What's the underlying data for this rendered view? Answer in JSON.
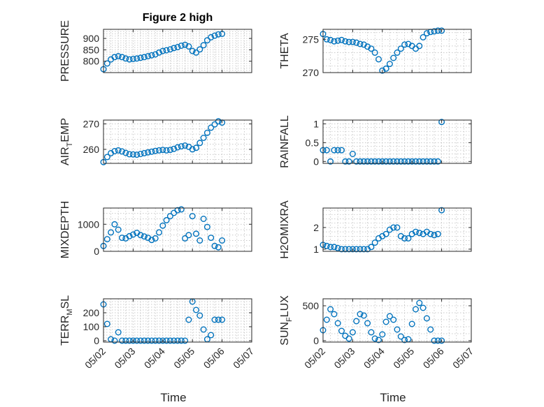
{
  "figure": {
    "title": "Figure 2 high",
    "xlabel": "Time",
    "x_tick_labels": [
      "05/02",
      "05/03",
      "05/04",
      "05/05",
      "05/06",
      "05/07"
    ],
    "marker_color": "#0072BD"
  },
  "chart_data": [
    {
      "type": "scatter",
      "title": "Figure 2 high",
      "ylabel": "PRESSURE",
      "xlabel": "",
      "ylim": [
        750,
        940
      ],
      "yticks": [
        800,
        850,
        900
      ],
      "ytick_labels": [
        "800",
        "850",
        "900"
      ],
      "xlim": [
        "05/02",
        "05/07"
      ],
      "grid": true,
      "x": [
        "05/02 00:00",
        "05/02 03:00",
        "05/02 06:00",
        "05/02 09:00",
        "05/02 12:00",
        "05/02 15:00",
        "05/02 18:00",
        "05/02 21:00",
        "05/03 00:00",
        "05/03 03:00",
        "05/03 06:00",
        "05/03 09:00",
        "05/03 12:00",
        "05/03 15:00",
        "05/03 18:00",
        "05/03 21:00",
        "05/04 00:00",
        "05/04 03:00",
        "05/04 06:00",
        "05/04 09:00",
        "05/04 12:00",
        "05/04 15:00",
        "05/04 18:00",
        "05/04 21:00",
        "05/05 00:00",
        "05/05 03:00",
        "05/05 06:00",
        "05/05 09:00",
        "05/05 12:00",
        "05/05 15:00",
        "05/05 18:00",
        "05/05 21:00",
        "05/06 00:00"
      ],
      "y": [
        765,
        790,
        808,
        818,
        822,
        818,
        812,
        808,
        810,
        812,
        815,
        818,
        822,
        826,
        830,
        838,
        845,
        848,
        852,
        858,
        862,
        868,
        872,
        865,
        845,
        838,
        852,
        870,
        892,
        905,
        912,
        918,
        920
      ]
    },
    {
      "type": "scatter",
      "ylabel": "THETA",
      "xlabel": "",
      "ylim": [
        270,
        276.5
      ],
      "yticks": [
        270,
        275
      ],
      "ytick_labels": [
        "270",
        "275"
      ],
      "xlim": [
        "05/02",
        "05/07"
      ],
      "grid": true,
      "x": [
        "05/02 00:00",
        "05/02 03:00",
        "05/02 06:00",
        "05/02 09:00",
        "05/02 12:00",
        "05/02 15:00",
        "05/02 18:00",
        "05/02 21:00",
        "05/03 00:00",
        "05/03 03:00",
        "05/03 06:00",
        "05/03 09:00",
        "05/03 12:00",
        "05/03 15:00",
        "05/03 18:00",
        "05/03 21:00",
        "05/04 00:00",
        "05/04 03:00",
        "05/04 06:00",
        "05/04 09:00",
        "05/04 12:00",
        "05/04 15:00",
        "05/04 18:00",
        "05/04 21:00",
        "05/05 00:00",
        "05/05 03:00",
        "05/05 06:00",
        "05/05 09:00",
        "05/05 12:00",
        "05/05 15:00",
        "05/05 18:00",
        "05/05 21:00",
        "05/06 00:00"
      ],
      "y": [
        275.8,
        275.0,
        274.9,
        274.7,
        274.8,
        274.9,
        274.7,
        274.6,
        274.6,
        274.5,
        274.3,
        274.2,
        273.9,
        273.6,
        273.0,
        272.0,
        270.3,
        270.6,
        271.3,
        272.2,
        273.0,
        273.6,
        274.2,
        274.3,
        274.0,
        273.6,
        274.0,
        275.3,
        275.9,
        276.1,
        276.2,
        276.3,
        276.3
      ]
    },
    {
      "type": "scatter",
      "ylabel": "AIR_TEMP",
      "xlabel": "",
      "ylim": [
        254.5,
        271.5
      ],
      "yticks": [
        260,
        270
      ],
      "ytick_labels": [
        "260",
        "270"
      ],
      "xlim": [
        "05/02",
        "05/07"
      ],
      "grid": true,
      "x": [
        "05/02 00:00",
        "05/02 03:00",
        "05/02 06:00",
        "05/02 09:00",
        "05/02 12:00",
        "05/02 15:00",
        "05/02 18:00",
        "05/02 21:00",
        "05/03 00:00",
        "05/03 03:00",
        "05/03 06:00",
        "05/03 09:00",
        "05/03 12:00",
        "05/03 15:00",
        "05/03 18:00",
        "05/03 21:00",
        "05/04 00:00",
        "05/04 03:00",
        "05/04 06:00",
        "05/04 09:00",
        "05/04 12:00",
        "05/04 15:00",
        "05/04 18:00",
        "05/04 21:00",
        "05/05 00:00",
        "05/05 03:00",
        "05/05 06:00",
        "05/05 09:00",
        "05/05 12:00",
        "05/05 15:00",
        "05/05 18:00",
        "05/05 21:00",
        "05/06 00:00"
      ],
      "y": [
        255,
        257,
        258.5,
        259.3,
        259.6,
        259.2,
        258.6,
        258.1,
        258.0,
        257.9,
        258.2,
        258.5,
        258.8,
        259.1,
        259.4,
        259.6,
        259.8,
        259.6,
        259.8,
        260.2,
        260.8,
        261.2,
        261.5,
        261.0,
        260.0,
        260.6,
        262.5,
        264.5,
        266.5,
        268.5,
        269.8,
        271.0,
        270.5
      ]
    },
    {
      "type": "scatter",
      "ylabel": "RAINFALL",
      "xlabel": "",
      "ylim": [
        -0.05,
        1.1
      ],
      "yticks": [
        0,
        0.5,
        1
      ],
      "ytick_labels": [
        "0",
        "0.5",
        "1"
      ],
      "xlim": [
        "05/02",
        "05/07"
      ],
      "grid": true,
      "x": [
        "05/02 00:00",
        "05/02 03:00",
        "05/02 06:00",
        "05/02 09:00",
        "05/02 12:00",
        "05/02 15:00",
        "05/02 18:00",
        "05/02 21:00",
        "05/03 00:00",
        "05/03 03:00",
        "05/03 06:00",
        "05/03 09:00",
        "05/03 12:00",
        "05/03 15:00",
        "05/03 18:00",
        "05/03 21:00",
        "05/04 00:00",
        "05/04 03:00",
        "05/04 06:00",
        "05/04 09:00",
        "05/04 12:00",
        "05/04 15:00",
        "05/04 18:00",
        "05/04 21:00",
        "05/05 00:00",
        "05/05 03:00",
        "05/05 06:00",
        "05/05 09:00",
        "05/05 12:00",
        "05/05 15:00",
        "05/05 18:00",
        "05/05 21:00",
        "05/06 00:00"
      ],
      "y": [
        0.3,
        0.3,
        0,
        0.3,
        0.3,
        0.3,
        0,
        0,
        0.2,
        0,
        0,
        0,
        0,
        0,
        0,
        0,
        0,
        0,
        0,
        0,
        0,
        0,
        0,
        0,
        0,
        0,
        0,
        0,
        0,
        0,
        0,
        0,
        1.05
      ]
    },
    {
      "type": "scatter",
      "ylabel": "MIXDEPTH",
      "xlabel": "",
      "ylim": [
        0,
        1600
      ],
      "yticks": [
        0,
        1000
      ],
      "ytick_labels": [
        "0",
        "1000"
      ],
      "xlim": [
        "05/02",
        "05/07"
      ],
      "grid": true,
      "x": [
        "05/02 00:00",
        "05/02 03:00",
        "05/02 06:00",
        "05/02 09:00",
        "05/02 12:00",
        "05/02 15:00",
        "05/02 18:00",
        "05/02 21:00",
        "05/03 00:00",
        "05/03 03:00",
        "05/03 06:00",
        "05/03 09:00",
        "05/03 12:00",
        "05/03 15:00",
        "05/03 18:00",
        "05/03 21:00",
        "05/04 00:00",
        "05/04 03:00",
        "05/04 06:00",
        "05/04 09:00",
        "05/04 12:00",
        "05/04 15:00",
        "05/04 18:00",
        "05/04 21:00",
        "05/05 00:00",
        "05/05 03:00",
        "05/05 06:00",
        "05/05 09:00",
        "05/05 12:00",
        "05/05 15:00",
        "05/05 18:00",
        "05/05 21:00",
        "05/06 00:00"
      ],
      "y": [
        200,
        450,
        700,
        1000,
        800,
        500,
        480,
        560,
        620,
        680,
        600,
        550,
        500,
        420,
        480,
        700,
        950,
        1150,
        1300,
        1420,
        1520,
        1550,
        480,
        600,
        1300,
        650,
        400,
        1200,
        900,
        500,
        200,
        150,
        400
      ]
    },
    {
      "type": "scatter",
      "ylabel": "H2OMIXRA",
      "xlabel": "",
      "ylim": [
        0.9,
        2.9
      ],
      "yticks": [
        1,
        2
      ],
      "ytick_labels": [
        "1",
        "2"
      ],
      "xlim": [
        "05/02",
        "05/07"
      ],
      "grid": true,
      "x": [
        "05/02 00:00",
        "05/02 03:00",
        "05/02 06:00",
        "05/02 09:00",
        "05/02 12:00",
        "05/02 15:00",
        "05/02 18:00",
        "05/02 21:00",
        "05/03 00:00",
        "05/03 03:00",
        "05/03 06:00",
        "05/03 09:00",
        "05/03 12:00",
        "05/03 15:00",
        "05/03 18:00",
        "05/03 21:00",
        "05/04 00:00",
        "05/04 03:00",
        "05/04 06:00",
        "05/04 09:00",
        "05/04 12:00",
        "05/04 15:00",
        "05/04 18:00",
        "05/04 21:00",
        "05/05 00:00",
        "05/05 03:00",
        "05/05 06:00",
        "05/05 09:00",
        "05/05 12:00",
        "05/05 15:00",
        "05/05 18:00",
        "05/05 21:00",
        "05/06 00:00"
      ],
      "y": [
        1.2,
        1.15,
        1.1,
        1.1,
        1.05,
        1.0,
        1.0,
        1.0,
        1.0,
        1.0,
        1.0,
        1.0,
        1.0,
        1.1,
        1.3,
        1.5,
        1.6,
        1.7,
        1.9,
        2.0,
        2.0,
        1.6,
        1.5,
        1.5,
        1.7,
        1.8,
        1.75,
        1.7,
        1.8,
        1.7,
        1.65,
        1.7,
        2.8
      ]
    },
    {
      "type": "scatter",
      "ylabel": "TERR_MSL",
      "xlabel": "",
      "ylim": [
        -10,
        300
      ],
      "yticks": [
        0,
        100,
        200
      ],
      "ytick_labels": [
        "0",
        "100",
        "200"
      ],
      "xlim": [
        "05/02",
        "05/07"
      ],
      "grid": true,
      "x": [
        "05/02 00:00",
        "05/02 03:00",
        "05/02 06:00",
        "05/02 09:00",
        "05/02 12:00",
        "05/02 15:00",
        "05/02 18:00",
        "05/02 21:00",
        "05/03 00:00",
        "05/03 03:00",
        "05/03 06:00",
        "05/03 09:00",
        "05/03 12:00",
        "05/03 15:00",
        "05/03 18:00",
        "05/03 21:00",
        "05/04 00:00",
        "05/04 03:00",
        "05/04 06:00",
        "05/04 09:00",
        "05/04 12:00",
        "05/04 15:00",
        "05/04 18:00",
        "05/04 21:00",
        "05/05 00:00",
        "05/05 03:00",
        "05/05 06:00",
        "05/05 09:00",
        "05/05 12:00",
        "05/05 15:00",
        "05/05 18:00",
        "05/05 21:00",
        "05/06 00:00"
      ],
      "y": [
        260,
        120,
        10,
        0,
        60,
        0,
        0,
        0,
        0,
        0,
        0,
        0,
        0,
        0,
        0,
        0,
        0,
        0,
        0,
        0,
        0,
        0,
        0,
        150,
        280,
        220,
        180,
        80,
        10,
        40,
        150,
        150,
        150
      ]
    },
    {
      "type": "scatter",
      "ylabel": "SUN_FLUX",
      "xlabel": "",
      "ylim": [
        -20,
        600
      ],
      "yticks": [
        0,
        500
      ],
      "ytick_labels": [
        "0",
        "500"
      ],
      "xlim": [
        "05/02",
        "05/07"
      ],
      "grid": true,
      "x": [
        "05/02 00:00",
        "05/02 03:00",
        "05/02 06:00",
        "05/02 09:00",
        "05/02 12:00",
        "05/02 15:00",
        "05/02 18:00",
        "05/02 21:00",
        "05/03 00:00",
        "05/03 03:00",
        "05/03 06:00",
        "05/03 09:00",
        "05/03 12:00",
        "05/03 15:00",
        "05/03 18:00",
        "05/03 21:00",
        "05/04 00:00",
        "05/04 03:00",
        "05/04 06:00",
        "05/04 09:00",
        "05/04 12:00",
        "05/04 15:00",
        "05/04 18:00",
        "05/04 21:00",
        "05/05 00:00",
        "05/05 03:00",
        "05/05 06:00",
        "05/05 09:00",
        "05/05 12:00",
        "05/05 15:00",
        "05/05 18:00",
        "05/05 21:00",
        "05/06 00:00"
      ],
      "y": [
        150,
        300,
        450,
        380,
        250,
        140,
        70,
        30,
        120,
        280,
        380,
        360,
        250,
        120,
        30,
        10,
        90,
        270,
        350,
        300,
        160,
        60,
        10,
        20,
        240,
        450,
        540,
        470,
        320,
        160,
        0,
        0,
        0
      ]
    }
  ]
}
